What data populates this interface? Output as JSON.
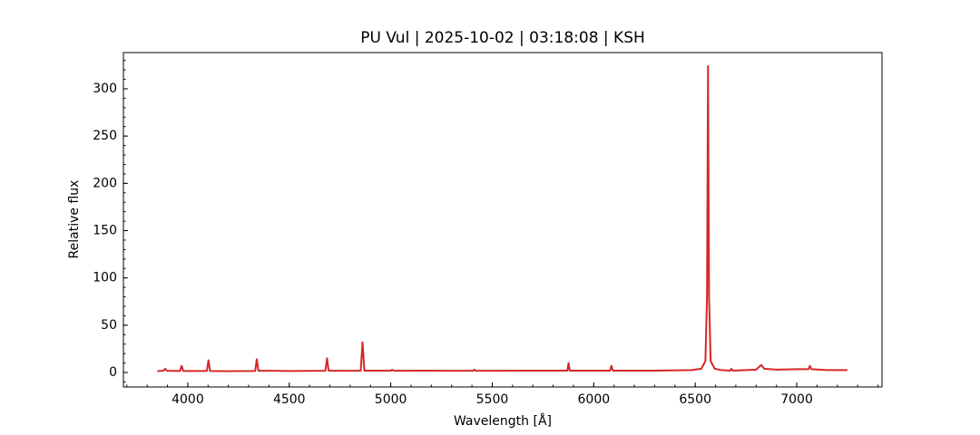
{
  "chart_data": {
    "type": "line",
    "title": "PU Vul | 2025-10-02 | 03:18:08 | KSH",
    "x_label": "Wavelength [Å]",
    "y_label": "Relative flux",
    "xlim": [
      3683,
      7420
    ],
    "ylim": [
      -15.3,
      338.3
    ],
    "xticks": [
      4000,
      4500,
      5000,
      5500,
      6000,
      6500,
      7000
    ],
    "yticks": [
      0,
      50,
      100,
      150,
      200,
      250,
      300
    ],
    "series": [
      {
        "name": "PU Vul",
        "color": "#d62728",
        "x": [
          3850,
          3880,
          3889,
          3898,
          3962,
          3970,
          3978,
          4094,
          4102,
          4110,
          4200,
          4332,
          4340,
          4348,
          4500,
          4678,
          4686,
          4694,
          4800,
          4852,
          4861,
          4870,
          4940,
          5000,
          5007,
          5015,
          5160,
          5300,
          5405,
          5412,
          5420,
          5720,
          5870,
          5876,
          5882,
          6080,
          6087,
          6094,
          6300,
          6480,
          6530,
          6550,
          6558,
          6563,
          6568,
          6576,
          6596,
          6630,
          6672,
          6678,
          6684,
          6800,
          6825,
          6840,
          6900,
          7000,
          7058,
          7065,
          7072,
          7150,
          7250
        ],
        "values": [
          1.5,
          1.8,
          4,
          1.8,
          1.6,
          7,
          1.6,
          1.6,
          13,
          1.6,
          1.4,
          1.6,
          14,
          2,
          1.6,
          1.8,
          15,
          2,
          1.8,
          2,
          32,
          2,
          2,
          1.8,
          3,
          1.8,
          2,
          1.8,
          1.8,
          3,
          1.8,
          2,
          2,
          10,
          2,
          2,
          7,
          2,
          2,
          2.5,
          4,
          12,
          80,
          324,
          80,
          12,
          4,
          2.5,
          2,
          4,
          2,
          3,
          8,
          4,
          3,
          3.5,
          3.5,
          7,
          3.5,
          2.5,
          2.5
        ]
      }
    ]
  }
}
